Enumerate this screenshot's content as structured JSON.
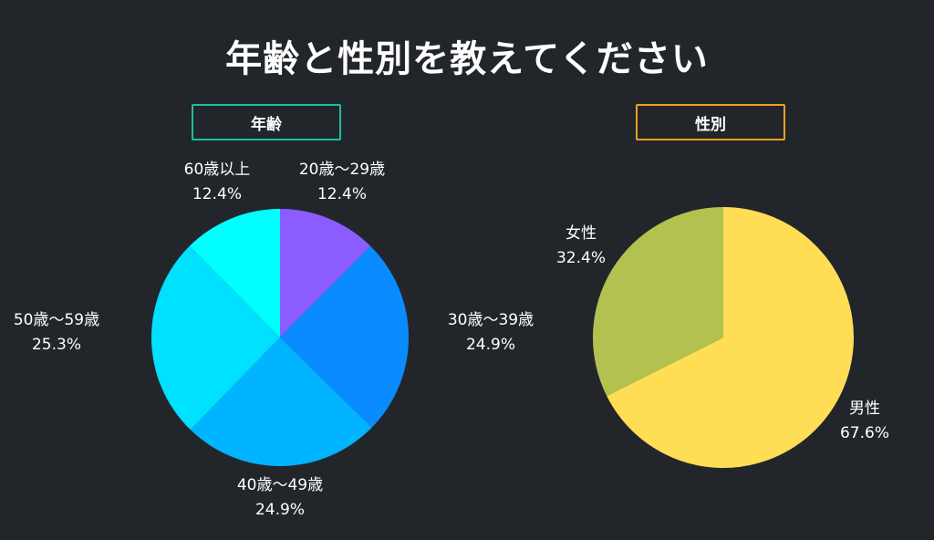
{
  "page": {
    "title": "年齢と性別を教えてください"
  },
  "chart_data": [
    {
      "type": "pie",
      "title": "年齢",
      "title_border_color": "#1fbf9a",
      "categories": [
        "20歳〜29歳",
        "30歳〜39歳",
        "40歳〜49歳",
        "50歳〜59歳",
        "60歳以上"
      ],
      "values": [
        12.4,
        24.9,
        24.9,
        25.3,
        12.4
      ],
      "labels": [
        "12.4%",
        "24.9%",
        "24.9%",
        "25.3%",
        "12.4%"
      ],
      "colors": [
        "#8b5cff",
        "#0a8bff",
        "#00b4ff",
        "#00e0ff",
        "#00ffff"
      ],
      "start": "top",
      "direction": "clockwise"
    },
    {
      "type": "pie",
      "title": "性別",
      "title_border_color": "#f0a020",
      "categories": [
        "男性",
        "女性"
      ],
      "values": [
        67.6,
        32.4
      ],
      "labels": [
        "67.6%",
        "32.4%"
      ],
      "colors": [
        "#ffdd55",
        "#b3c150"
      ],
      "start": "top",
      "direction": "clockwise"
    }
  ]
}
